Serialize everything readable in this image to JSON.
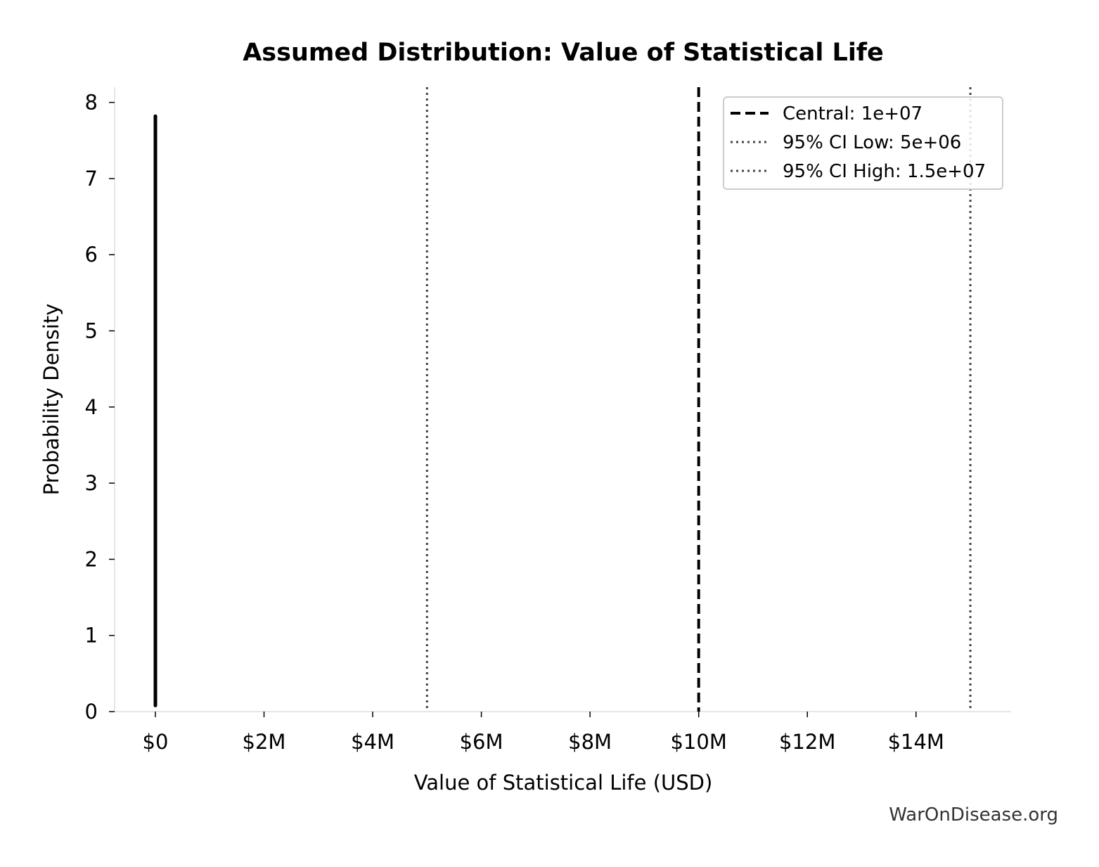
{
  "chart_data": {
    "type": "line",
    "title": "Assumed Distribution: Value of Statistical Life",
    "xlabel": "Value of Statistical Life (USD)",
    "ylabel": "Probability Density",
    "xlim": [
      -750000,
      15750000
    ],
    "ylim": [
      0,
      8.2
    ],
    "x_ticks": [
      {
        "value": 0,
        "label": "$0"
      },
      {
        "value": 2000000,
        "label": "$2M"
      },
      {
        "value": 4000000,
        "label": "$4M"
      },
      {
        "value": 6000000,
        "label": "$6M"
      },
      {
        "value": 8000000,
        "label": "$8M"
      },
      {
        "value": 10000000,
        "label": "$10M"
      },
      {
        "value": 12000000,
        "label": "$12M"
      },
      {
        "value": 14000000,
        "label": "$14M"
      }
    ],
    "y_ticks": [
      {
        "value": 0,
        "label": "0"
      },
      {
        "value": 1,
        "label": "1"
      },
      {
        "value": 2,
        "label": "2"
      },
      {
        "value": 3,
        "label": "3"
      },
      {
        "value": 4,
        "label": "4"
      },
      {
        "value": 5,
        "label": "5"
      },
      {
        "value": 6,
        "label": "6"
      },
      {
        "value": 7,
        "label": "7"
      },
      {
        "value": 8,
        "label": "8"
      }
    ],
    "density_curve": {
      "x": [
        0,
        0
      ],
      "y": [
        0.08,
        7.82
      ],
      "color": "#000000"
    },
    "reference_lines": [
      {
        "label": "Central: 1e+07",
        "x": 10000000,
        "style": "dashed",
        "color": "#000000"
      },
      {
        "label": "95% CI Low: 5e+06",
        "x": 5000000,
        "style": "dotted",
        "color": "#444444"
      },
      {
        "label": "95% CI High: 1.5e+07",
        "x": 15000000,
        "style": "dotted",
        "color": "#444444"
      }
    ],
    "legend_position": "top-right",
    "grid": false
  },
  "watermark": "WarOnDisease.org"
}
